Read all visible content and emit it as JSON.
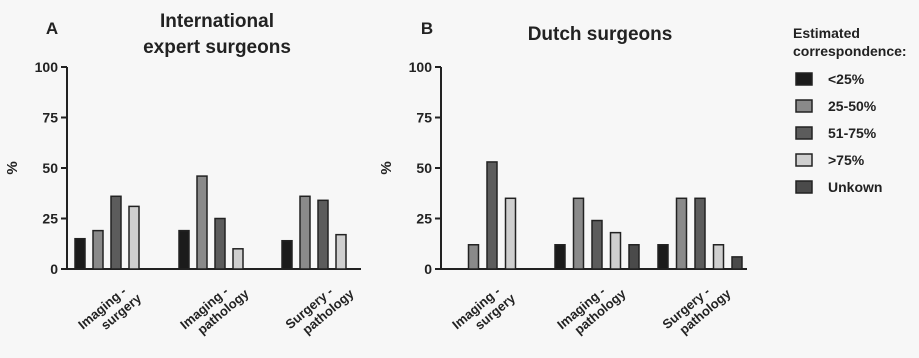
{
  "colors": {
    "lt25": "#1b1b1b",
    "p25_50": "#8a8a8a",
    "p51_75": "#5c5c5c",
    "gt75": "#cfcfcf",
    "unknown": "#4a4a4a"
  },
  "legend": {
    "title_line1": "Estimated",
    "title_line2": "correspondence:",
    "items": [
      {
        "label": "<25%",
        "color_key": "lt25"
      },
      {
        "label": "25-50%",
        "color_key": "p25_50"
      },
      {
        "label": "51-75%",
        "color_key": "p51_75"
      },
      {
        "label": ">75%",
        "color_key": "gt75"
      },
      {
        "label": "Unkown",
        "color_key": "unknown"
      }
    ]
  },
  "chart_data": [
    {
      "type": "bar",
      "panel_letter": "A",
      "title_lines": [
        "International",
        "expert surgeons"
      ],
      "ylabel": "%",
      "ylim": [
        0,
        100
      ],
      "yticks": [
        0,
        25,
        50,
        75,
        100
      ],
      "categories": [
        [
          "Imaging -",
          "surgery"
        ],
        [
          "Imaging -",
          "pathology"
        ],
        [
          "Surgery -",
          "pathology"
        ]
      ],
      "series": [
        {
          "name": "<25%",
          "color_key": "lt25",
          "values": [
            15,
            19,
            14
          ]
        },
        {
          "name": "25-50%",
          "color_key": "p25_50",
          "values": [
            19,
            46,
            36
          ]
        },
        {
          "name": "51-75%",
          "color_key": "p51_75",
          "values": [
            36,
            25,
            34
          ]
        },
        {
          "name": ">75%",
          "color_key": "gt75",
          "values": [
            31,
            10,
            17
          ]
        }
      ]
    },
    {
      "type": "bar",
      "panel_letter": "B",
      "title_lines": [
        "Dutch surgeons"
      ],
      "ylabel": "%",
      "ylim": [
        0,
        100
      ],
      "yticks": [
        0,
        25,
        50,
        75,
        100
      ],
      "categories": [
        [
          "Imaging -",
          "surgery"
        ],
        [
          "Imaging -",
          "pathology"
        ],
        [
          "Surgery -",
          "pathology"
        ]
      ],
      "series": [
        {
          "name": "<25%",
          "color_key": "lt25",
          "values": [
            0,
            12,
            12
          ]
        },
        {
          "name": "25-50%",
          "color_key": "p25_50",
          "values": [
            12,
            35,
            35
          ]
        },
        {
          "name": "51-75%",
          "color_key": "p51_75",
          "values": [
            53,
            24,
            35
          ]
        },
        {
          "name": ">75%",
          "color_key": "gt75",
          "values": [
            35,
            18,
            12
          ]
        },
        {
          "name": "Unkown",
          "color_key": "unknown",
          "values": [
            0,
            12,
            6
          ]
        }
      ]
    }
  ]
}
